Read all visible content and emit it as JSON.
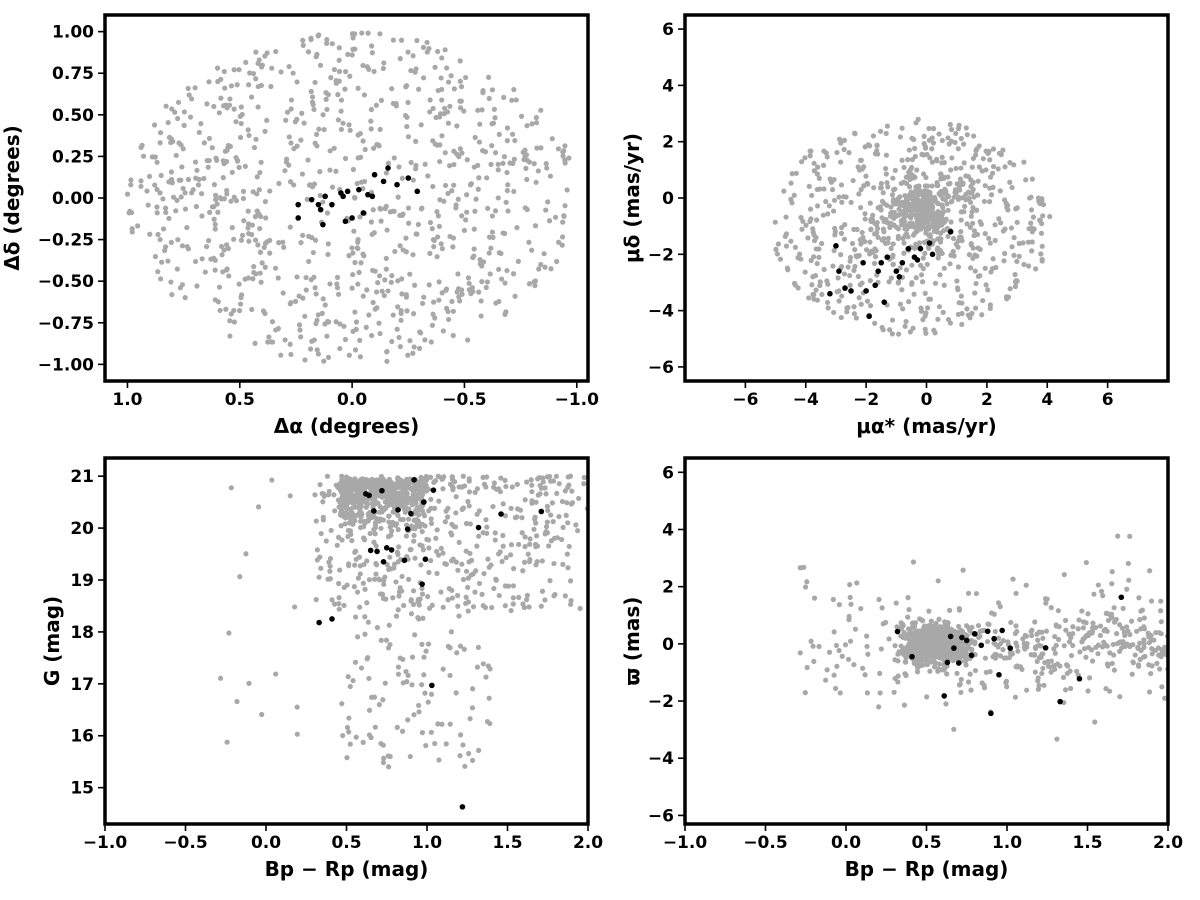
{
  "chart_data": [
    {
      "type": "scatter",
      "xlabel": "Δα (degrees)",
      "ylabel": "Δδ (degrees)",
      "xlim": [
        1.1,
        -1.05
      ],
      "ylim": [
        -1.1,
        1.1
      ],
      "x_reversed": true,
      "xticks": [
        1.0,
        0.5,
        0.0,
        -0.5,
        -1.0
      ],
      "xtick_labels": [
        "1.0",
        "0.5",
        "0.0",
        "−0.5",
        "−1.0"
      ],
      "yticks": [
        -1.0,
        -0.75,
        -0.5,
        -0.25,
        0.0,
        0.25,
        0.5,
        0.75,
        1.0
      ],
      "ytick_labels": [
        "−1.00",
        "−0.75",
        "−0.50",
        "−0.25",
        "0.00",
        "0.25",
        "0.50",
        "0.75",
        "1.00"
      ],
      "background": {
        "color": "#a8a8a8",
        "shape": "disk",
        "center": [
          0.0,
          0.0
        ],
        "radius": [
          1.0,
          1.0
        ],
        "n": 900
      },
      "members": {
        "color": "#000000",
        "x": [
          0.24,
          0.24,
          0.18,
          0.15,
          0.14,
          0.13,
          0.12,
          0.09,
          0.05,
          0.04,
          0.03,
          0.02,
          0.0,
          -0.03,
          -0.05,
          -0.07,
          -0.09,
          -0.1,
          -0.14,
          -0.16,
          -0.2,
          -0.25,
          -0.29
        ],
        "y": [
          -0.04,
          -0.12,
          -0.01,
          -0.04,
          -0.07,
          -0.16,
          0.01,
          -0.04,
          0.03,
          0.01,
          -0.14,
          0.04,
          -0.12,
          0.05,
          -0.09,
          0.02,
          0.01,
          0.14,
          0.1,
          0.18,
          0.08,
          0.12,
          0.04
        ]
      }
    },
    {
      "type": "scatter",
      "xlabel": "μα* (mas/yr)",
      "ylabel": "μδ (mas/yr)",
      "xlim": [
        -8,
        8
      ],
      "ylim": [
        -6.5,
        6.5
      ],
      "xticks": [
        -6,
        -4,
        -2,
        0,
        2,
        4,
        6
      ],
      "xtick_labels": [
        "−6",
        "−4",
        "−2",
        "0",
        "2",
        "4",
        "6"
      ],
      "yticks": [
        -6,
        -4,
        -2,
        0,
        2,
        4,
        6
      ],
      "ytick_labels": [
        "−6",
        "−4",
        "−2",
        "0",
        "2",
        "4",
        "6"
      ],
      "background": {
        "color": "#a8a8a8",
        "shape": "disk",
        "center": [
          -0.5,
          -1.0
        ],
        "radius": [
          4.6,
          3.9
        ],
        "n": 1000
      },
      "members": {
        "color": "#000000",
        "x": [
          -3.2,
          -3.0,
          -2.9,
          -2.7,
          -2.5,
          -2.1,
          -2.0,
          -1.9,
          -1.7,
          -1.6,
          -1.5,
          -1.4,
          -1.3,
          -1.0,
          -0.9,
          -0.8,
          -0.6,
          -0.4,
          -0.3,
          -0.2,
          0.1,
          0.2,
          0.8
        ],
        "y": [
          -3.4,
          -1.7,
          -2.6,
          -3.2,
          -3.3,
          -2.3,
          -3.3,
          -4.2,
          -3.1,
          -2.6,
          -2.3,
          -3.7,
          -2.1,
          -2.6,
          -2.8,
          -2.3,
          -1.8,
          -2.1,
          -2.2,
          -1.8,
          -1.6,
          -2.0,
          -1.2
        ]
      }
    },
    {
      "type": "scatter",
      "xlabel": "Bp − Rp (mag)",
      "ylabel": "G (mag)",
      "xlim": [
        -1.0,
        2.0
      ],
      "ylim": [
        14.3,
        21.35
      ],
      "y_reversed": true,
      "xticks": [
        -1.0,
        -0.5,
        0.0,
        0.5,
        1.0,
        1.5,
        2.0
      ],
      "xtick_labels": [
        "−1.0",
        "−0.5",
        "0.0",
        "0.5",
        "1.0",
        "1.5",
        "2.0"
      ],
      "yticks": [
        15,
        16,
        17,
        18,
        19,
        20,
        21
      ],
      "ytick_labels": [
        "15",
        "16",
        "17",
        "18",
        "19",
        "20",
        "21"
      ],
      "background": {
        "color": "#a8a8a8",
        "shape": "cmd",
        "n": 1100
      },
      "members": {
        "color": "#000000",
        "x": [
          0.33,
          0.41,
          0.62,
          0.64,
          0.65,
          0.67,
          0.69,
          0.72,
          0.73,
          0.75,
          0.78,
          0.82,
          0.86,
          0.88,
          0.9,
          0.92,
          0.97,
          0.98,
          0.99,
          1.03,
          1.04,
          1.22,
          1.32,
          1.46,
          1.71
        ],
        "y": [
          18.18,
          18.25,
          20.66,
          20.63,
          19.57,
          20.33,
          19.55,
          20.72,
          19.35,
          19.62,
          19.58,
          20.35,
          19.38,
          19.98,
          20.28,
          20.93,
          18.92,
          20.5,
          19.4,
          16.97,
          20.73,
          14.63,
          20.01,
          20.27,
          20.32
        ]
      }
    },
    {
      "type": "scatter",
      "xlabel": "Bp − Rp (mag)",
      "ylabel": "ϖ (mas)",
      "xlim": [
        -1.0,
        2.0
      ],
      "ylim": [
        -6.3,
        6.5
      ],
      "xticks": [
        -1.0,
        -0.5,
        0.0,
        0.5,
        1.0,
        1.5,
        2.0
      ],
      "xtick_labels": [
        "−1.0",
        "−0.5",
        "0.0",
        "0.5",
        "1.0",
        "1.5",
        "2.0"
      ],
      "yticks": [
        -6,
        -4,
        -2,
        0,
        2,
        4,
        6
      ],
      "ytick_labels": [
        "−6",
        "−4",
        "−2",
        "0",
        "2",
        "4",
        "6"
      ],
      "background": {
        "color": "#a8a8a8",
        "shape": "parallax",
        "n": 1200
      },
      "members": {
        "color": "#000000",
        "x": [
          0.32,
          0.41,
          0.61,
          0.63,
          0.65,
          0.67,
          0.7,
          0.72,
          0.75,
          0.78,
          0.8,
          0.84,
          0.88,
          0.9,
          0.92,
          0.95,
          0.97,
          1.02,
          1.24,
          1.33,
          1.45,
          1.71
        ],
        "y": [
          0.43,
          -0.45,
          -1.82,
          -0.65,
          0.26,
          -0.15,
          -0.67,
          0.22,
          0.12,
          -0.4,
          0.35,
          -0.05,
          0.44,
          -2.43,
          0.18,
          -1.08,
          0.47,
          -0.15,
          -0.14,
          -2.02,
          -1.22,
          1.63
        ]
      }
    }
  ]
}
